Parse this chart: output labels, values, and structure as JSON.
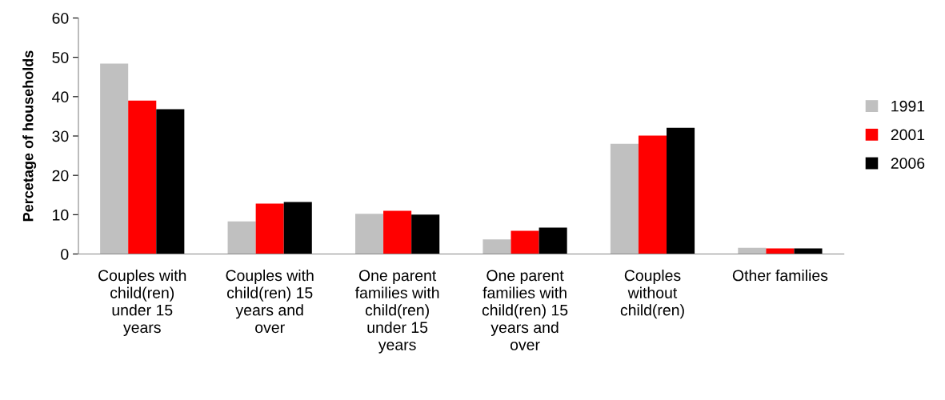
{
  "chart_data": {
    "type": "bar",
    "ylabel": "Percetage of households",
    "categories": [
      "Couples with\nchild(ren)\nunder 15\nyears",
      "Couples with\nchild(ren) 15\nyears and\nover",
      "One parent\nfamilies with\nchild(ren)\nunder 15\nyears",
      "One parent\nfamilies with\nchild(ren) 15\nyears and\nover",
      "Couples\nwithout\nchild(ren)",
      "Other families"
    ],
    "series": [
      {
        "name": "1991",
        "color": "#c0c0c0",
        "values": [
          48.4,
          8.3,
          10.2,
          3.7,
          28.0,
          1.6
        ]
      },
      {
        "name": "2001",
        "color": "#ff0000",
        "values": [
          39.0,
          12.8,
          11.0,
          5.9,
          30.1,
          1.4
        ]
      },
      {
        "name": "2006",
        "color": "#000000",
        "values": [
          36.8,
          13.2,
          10.0,
          6.7,
          32.1,
          1.4
        ]
      }
    ],
    "ylim": [
      0,
      60
    ],
    "yticks": [
      0,
      10,
      20,
      30,
      40,
      50,
      60
    ],
    "grid": false,
    "legend": "right"
  }
}
